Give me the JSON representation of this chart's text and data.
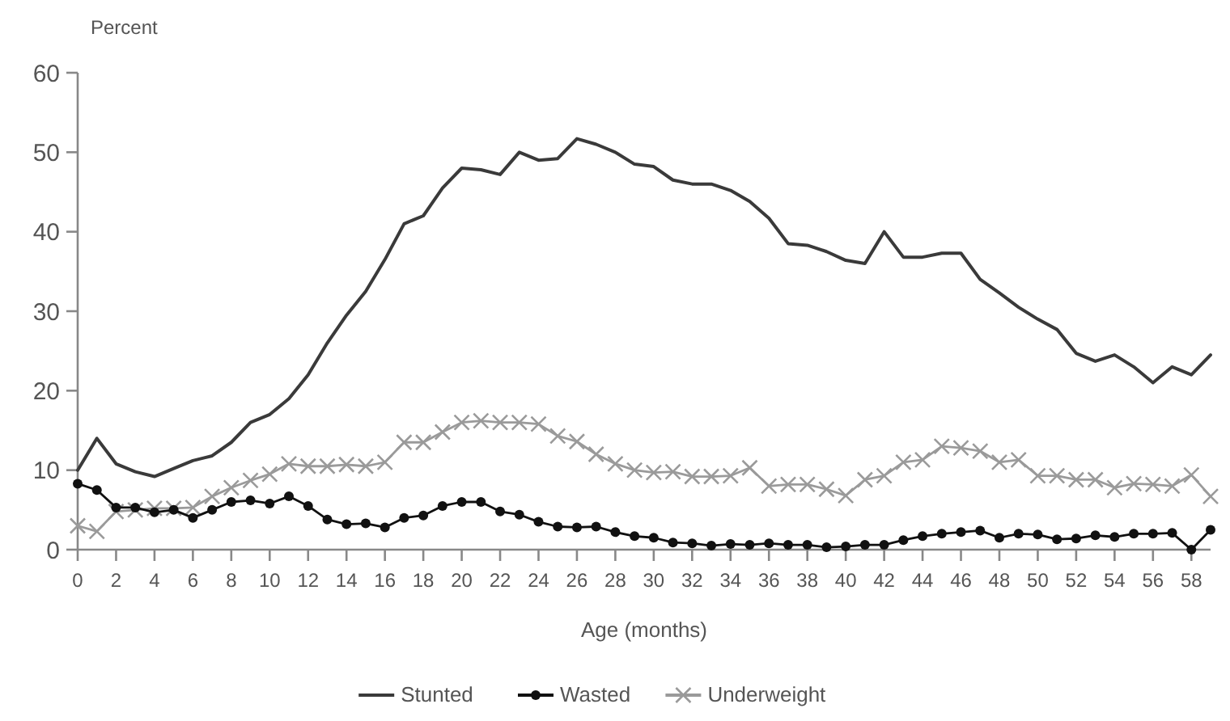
{
  "chart_data": {
    "type": "line",
    "xlabel": "Age (months)",
    "ylabel": "Percent",
    "x": [
      0,
      1,
      2,
      3,
      4,
      5,
      6,
      7,
      8,
      9,
      10,
      11,
      12,
      13,
      14,
      15,
      16,
      17,
      18,
      19,
      20,
      21,
      22,
      23,
      24,
      25,
      26,
      27,
      28,
      29,
      30,
      31,
      32,
      33,
      34,
      35,
      36,
      37,
      38,
      39,
      40,
      41,
      42,
      43,
      44,
      45,
      46,
      47,
      48,
      49,
      50,
      51,
      52,
      53,
      54,
      55,
      56,
      57,
      58,
      59
    ],
    "series": [
      {
        "name": "Stunted",
        "color": "#3a3a3a",
        "marker": "none",
        "values": [
          10,
          14,
          10.8,
          9.8,
          9.2,
          10.2,
          11.2,
          11.8,
          13.5,
          16,
          17,
          19,
          22,
          26,
          29.5,
          32.5,
          36.5,
          41,
          42,
          45.5,
          48,
          47.8,
          47.2,
          50,
          49,
          49.2,
          51.7,
          51,
          50,
          48.5,
          48.2,
          46.5,
          46,
          46,
          45.2,
          43.8,
          41.7,
          38.5,
          38.3,
          37.5,
          36.4,
          36,
          40,
          36.8,
          36.8,
          37.3,
          37.3,
          34,
          32.3,
          30.5,
          29,
          27.7,
          24.7,
          23.7,
          24.5,
          23,
          21,
          23,
          22,
          24.5
        ]
      },
      {
        "name": "Wasted",
        "color": "#111111",
        "marker": "circle",
        "values": [
          8.3,
          7.5,
          5.3,
          5.3,
          4.7,
          5,
          4,
          5,
          6,
          6.2,
          5.8,
          6.7,
          5.5,
          3.8,
          3.2,
          3.3,
          2.8,
          4,
          4.3,
          5.5,
          6,
          6,
          4.8,
          4.4,
          3.5,
          2.9,
          2.8,
          2.9,
          2.2,
          1.7,
          1.5,
          0.9,
          0.8,
          0.5,
          0.7,
          0.6,
          0.8,
          0.6,
          0.6,
          0.3,
          0.4,
          0.6,
          0.6,
          1.2,
          1.7,
          2,
          2.2,
          2.4,
          1.5,
          2,
          1.9,
          1.3,
          1.4,
          1.8,
          1.6,
          2,
          2,
          2.1,
          0,
          2.5
        ]
      },
      {
        "name": "Underweight",
        "color": "#9a9a9a",
        "marker": "cross",
        "values": [
          3,
          2.3,
          4.8,
          5,
          5.2,
          5.2,
          5.3,
          6.7,
          7.8,
          8.7,
          9.5,
          10.8,
          10.5,
          10.5,
          10.7,
          10.5,
          11,
          13.5,
          13.5,
          14.8,
          16,
          16.2,
          16,
          16,
          15.8,
          14.3,
          13.6,
          12,
          10.8,
          10,
          9.7,
          9.8,
          9.2,
          9.2,
          9.3,
          10.3,
          8,
          8.2,
          8.2,
          7.6,
          6.8,
          8.8,
          9.3,
          11,
          11.3,
          13,
          12.8,
          12.4,
          11,
          11.3,
          9.3,
          9.3,
          8.8,
          8.8,
          7.8,
          8.3,
          8.2,
          8,
          9.4,
          6.7
        ]
      }
    ],
    "xlim": [
      0,
      59
    ],
    "xticks": [
      0,
      2,
      4,
      6,
      8,
      10,
      12,
      14,
      16,
      18,
      20,
      22,
      24,
      26,
      28,
      30,
      32,
      34,
      36,
      38,
      40,
      42,
      44,
      46,
      48,
      50,
      52,
      54,
      56,
      58
    ],
    "ylim": [
      0,
      60
    ],
    "yticks": [
      0,
      10,
      20,
      30,
      40,
      50,
      60
    ],
    "grid": false,
    "legend": "bottom"
  }
}
